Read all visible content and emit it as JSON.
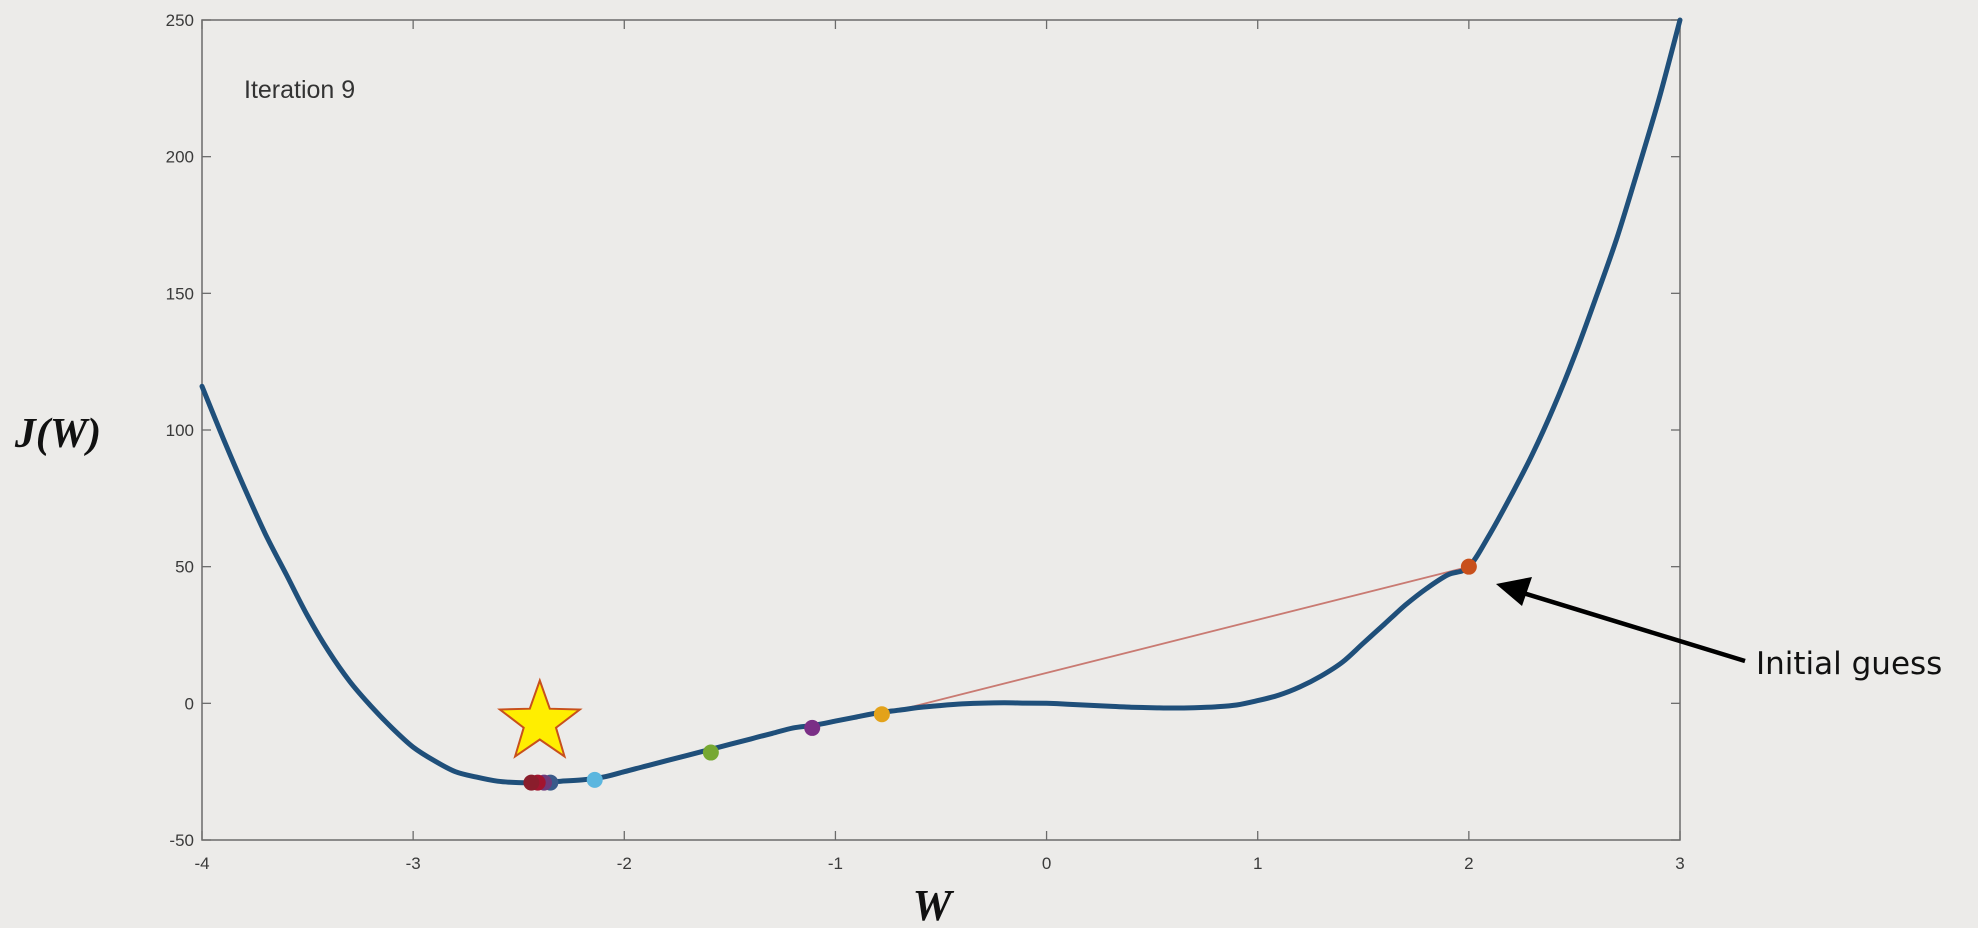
{
  "chart_data": {
    "type": "line",
    "xlabel": "W",
    "ylabel": "J(W)",
    "xlim": [
      -4,
      3
    ],
    "ylim": [
      -50,
      250
    ],
    "x_ticks": [
      -4,
      -3,
      -2,
      -1,
      0,
      1,
      2,
      3
    ],
    "y_ticks": [
      -50,
      0,
      50,
      100,
      150,
      200,
      250
    ],
    "grid": false,
    "legend": "none",
    "series": [
      {
        "type": "line",
        "color": "#1f4f7a",
        "x": [
          -4.0,
          -3.9,
          -3.8,
          -3.7,
          -3.6,
          -3.5,
          -3.4,
          -3.3,
          -3.2,
          -3.1,
          -3.0,
          -2.9,
          -2.8,
          -2.7,
          -2.6,
          -2.5,
          -2.4,
          -2.3,
          -2.2,
          -2.1,
          -2.0,
          -1.9,
          -1.8,
          -1.7,
          -1.6,
          -1.5,
          -1.4,
          -1.3,
          -1.2,
          -1.1,
          -1.0,
          -0.9,
          -0.8,
          -0.7,
          -0.6,
          -0.5,
          -0.4,
          -0.3,
          -0.2,
          -0.1,
          0.0,
          0.1,
          0.2,
          0.3,
          0.4,
          0.5,
          0.6,
          0.7,
          0.8,
          0.9,
          1.0,
          1.1,
          1.2,
          1.3,
          1.4,
          1.5,
          1.6,
          1.7,
          1.8,
          1.9,
          2.0,
          2.1,
          2.2,
          2.3,
          2.4,
          2.5,
          2.6,
          2.7,
          2.8,
          2.9,
          3.0
        ],
        "y": [
          116,
          97,
          79,
          62,
          47,
          32,
          19,
          8,
          -1,
          -9,
          -16,
          -21,
          -25,
          -27,
          -28.5,
          -29,
          -29,
          -28.5,
          -28,
          -27,
          -25,
          -23,
          -21,
          -19,
          -17,
          -15,
          -13,
          -11,
          -9,
          -8,
          -6.5,
          -5,
          -3.5,
          -2.5,
          -1.5,
          -0.8,
          -0.2,
          0.1,
          0.2,
          0.1,
          0,
          -0.3,
          -0.7,
          -1.1,
          -1.4,
          -1.6,
          -1.7,
          -1.6,
          -1.3,
          -0.6,
          1,
          3,
          6,
          10,
          15,
          22,
          29,
          36,
          42,
          47,
          50,
          62,
          76,
          91,
          108,
          127,
          148,
          170,
          195,
          221,
          250
        ]
      },
      {
        "type": "line",
        "color": "#c97a72",
        "x": [
          -0.78,
          2.0
        ],
        "y": [
          -4,
          50
        ]
      }
    ],
    "points": [
      {
        "x": 2.0,
        "y": 50,
        "color": "#c8501c"
      },
      {
        "x": -0.78,
        "y": -4,
        "color": "#e3a21a"
      },
      {
        "x": -1.11,
        "y": -9,
        "color": "#7a2f86"
      },
      {
        "x": -1.59,
        "y": -18,
        "color": "#76a832"
      },
      {
        "x": -2.14,
        "y": -28,
        "color": "#5bb6df"
      },
      {
        "x": -2.35,
        "y": -29,
        "color": "#3a5a8a"
      },
      {
        "x": -2.38,
        "y": -29,
        "color": "#6e3a7a"
      },
      {
        "x": -2.41,
        "y": -29,
        "color": "#a2142f"
      },
      {
        "x": -2.44,
        "y": -29,
        "color": "#8a1d2c"
      }
    ],
    "star": {
      "x": -2.4,
      "y": -7,
      "fill": "#ffee00",
      "stroke": "#c8501c"
    },
    "annotation": "Iteration 9",
    "callout": {
      "text": "Initial guess",
      "target_x": 2.0,
      "target_y": 50
    }
  }
}
